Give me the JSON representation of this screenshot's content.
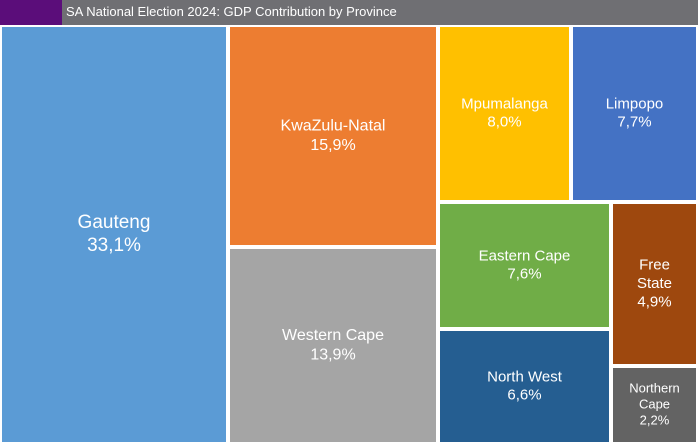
{
  "title": "SA National Election 2024: GDP Contribution by Province",
  "colors": {
    "title_bar": "#6f6f73",
    "title_accent": "#5b0d7a",
    "title_text": "#ffffff",
    "border": "#ffffff"
  },
  "chart_data": {
    "type": "treemap",
    "title": "SA National Election 2024: GDP Contribution by Province",
    "value_unit": "%",
    "series": [
      {
        "name": "Gauteng",
        "label_lines": [
          "Gauteng"
        ],
        "value_text": "33,1%",
        "value": 33.1,
        "color": "#5b9bd5",
        "text_color": "#ffffff"
      },
      {
        "name": "KwaZulu-Natal",
        "label_lines": [
          "KwaZulu-Natal"
        ],
        "value_text": "15,9%",
        "value": 15.9,
        "color": "#ed7d31",
        "text_color": "#ffffff"
      },
      {
        "name": "Western Cape",
        "label_lines": [
          "Western Cape"
        ],
        "value_text": "13,9%",
        "value": 13.9,
        "color": "#a5a5a5",
        "text_color": "#ffffff"
      },
      {
        "name": "Mpumalanga",
        "label_lines": [
          "Mpumalanga"
        ],
        "value_text": "8,0%",
        "value": 8.0,
        "color": "#ffc000",
        "text_color": "#ffffff"
      },
      {
        "name": "Limpopo",
        "label_lines": [
          "Limpopo"
        ],
        "value_text": "7,7%",
        "value": 7.7,
        "color": "#4472c4",
        "text_color": "#ffffff"
      },
      {
        "name": "Eastern Cape",
        "label_lines": [
          "Eastern Cape"
        ],
        "value_text": "7,6%",
        "value": 7.6,
        "color": "#70ad47",
        "text_color": "#ffffff"
      },
      {
        "name": "North West",
        "label_lines": [
          "North West"
        ],
        "value_text": "6,6%",
        "value": 6.6,
        "color": "#255e91",
        "text_color": "#ffffff"
      },
      {
        "name": "Free State",
        "label_lines": [
          "Free",
          "State"
        ],
        "value_text": "4,9%",
        "value": 4.9,
        "color": "#9e480e",
        "text_color": "#ffffff"
      },
      {
        "name": "Northern Cape",
        "label_lines": [
          "Northern",
          "Cape"
        ],
        "value_text": "2,2%",
        "value": 2.2,
        "color": "#636363",
        "text_color": "#ffffff"
      }
    ]
  }
}
